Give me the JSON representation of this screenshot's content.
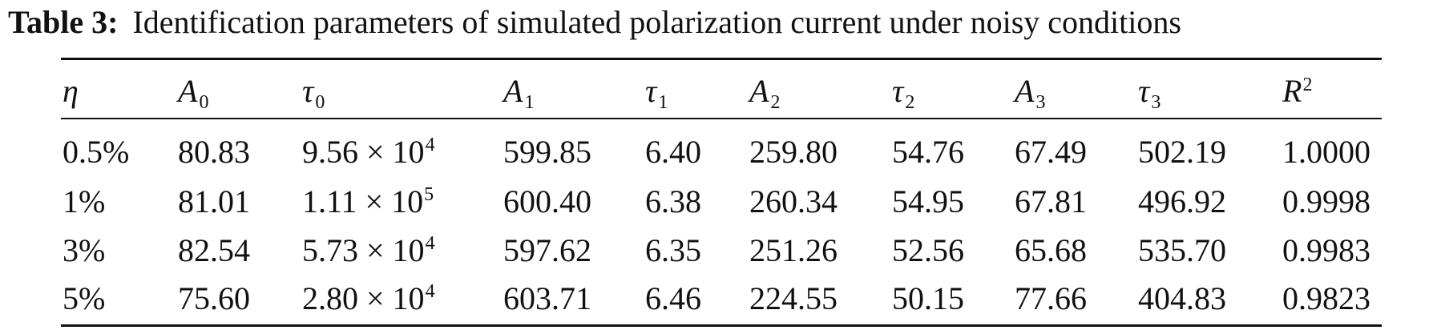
{
  "caption": {
    "label": "Table 3:",
    "text": "Identification parameters of simulated polarization current under noisy conditions"
  },
  "columns": [
    {
      "sym": "η",
      "sub": "",
      "sup": ""
    },
    {
      "sym": "A",
      "sub": "0",
      "sup": ""
    },
    {
      "sym": "τ",
      "sub": "0",
      "sup": ""
    },
    {
      "sym": "A",
      "sub": "1",
      "sup": ""
    },
    {
      "sym": "τ",
      "sub": "1",
      "sup": ""
    },
    {
      "sym": "A",
      "sub": "2",
      "sup": ""
    },
    {
      "sym": "τ",
      "sub": "2",
      "sup": ""
    },
    {
      "sym": "A",
      "sub": "3",
      "sup": ""
    },
    {
      "sym": "τ",
      "sub": "3",
      "sup": ""
    },
    {
      "sym": "R",
      "sub": "",
      "sup": "2"
    }
  ],
  "rows": [
    {
      "eta": "0.5%",
      "A0": "80.83",
      "tau0_mant": "9.56 × 10",
      "tau0_exp": "4",
      "A1": "599.85",
      "tau1": "6.40",
      "A2": "259.80",
      "tau2": "54.76",
      "A3": "67.49",
      "tau3": "502.19",
      "R2": "1.0000"
    },
    {
      "eta": "1%",
      "A0": "81.01",
      "tau0_mant": "1.11 × 10",
      "tau0_exp": "5",
      "A1": "600.40",
      "tau1": "6.38",
      "A2": "260.34",
      "tau2": "54.95",
      "A3": "67.81",
      "tau3": "496.92",
      "R2": "0.9998"
    },
    {
      "eta": "3%",
      "A0": "82.54",
      "tau0_mant": "5.73 × 10",
      "tau0_exp": "4",
      "A1": "597.62",
      "tau1": "6.35",
      "A2": "251.26",
      "tau2": "52.56",
      "A3": "65.68",
      "tau3": "535.70",
      "R2": "0.9983"
    },
    {
      "eta": "5%",
      "A0": "75.60",
      "tau0_mant": "2.80 × 10",
      "tau0_exp": "4",
      "A1": "603.71",
      "tau1": "6.46",
      "A2": "224.55",
      "tau2": "50.15",
      "A3": "77.66",
      "tau3": "404.83",
      "R2": "0.9823"
    }
  ]
}
